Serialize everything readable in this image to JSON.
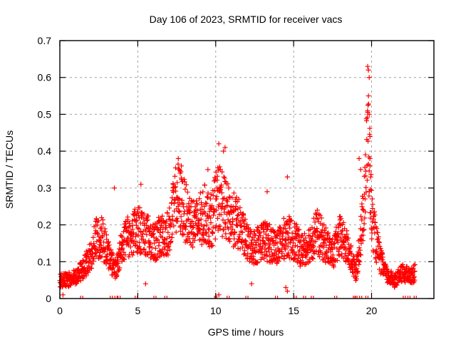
{
  "chart_data": {
    "type": "scatter",
    "title": "Day 106 of 2023, SRMTID for receiver vacs",
    "xlabel": "GPS time / hours",
    "ylabel": "SRMTID / TECUs",
    "xlim": [
      0,
      24
    ],
    "ylim": [
      0,
      0.7
    ],
    "xticks": [
      0,
      5,
      10,
      15,
      20
    ],
    "xtick_labels": [
      "0",
      "5",
      "10",
      "15",
      "20"
    ],
    "yticks": [
      0,
      0.1,
      0.2,
      0.3,
      0.4,
      0.5,
      0.6,
      0.7
    ],
    "ytick_labels": [
      "0",
      "0.1",
      "0.2",
      "0.3",
      "0.4",
      "0.5",
      "0.6",
      "0.7"
    ],
    "grid": true,
    "marker": "+",
    "color": "#ff0000",
    "series": [
      {
        "name": "SRMTID",
        "envelope": [
          [
            0.0,
            0.05
          ],
          [
            0.5,
            0.05
          ],
          [
            1.0,
            0.06
          ],
          [
            1.5,
            0.08
          ],
          [
            2.0,
            0.12
          ],
          [
            2.3,
            0.16
          ],
          [
            2.7,
            0.17
          ],
          [
            3.0,
            0.13
          ],
          [
            3.3,
            0.1
          ],
          [
            3.6,
            0.08
          ],
          [
            4.0,
            0.15
          ],
          [
            4.5,
            0.17
          ],
          [
            5.0,
            0.19
          ],
          [
            5.5,
            0.18
          ],
          [
            6.0,
            0.15
          ],
          [
            6.5,
            0.17
          ],
          [
            7.0,
            0.18
          ],
          [
            7.5,
            0.28
          ],
          [
            7.8,
            0.26
          ],
          [
            8.2,
            0.22
          ],
          [
            8.8,
            0.2
          ],
          [
            9.3,
            0.23
          ],
          [
            9.7,
            0.21
          ],
          [
            10.2,
            0.28
          ],
          [
            10.6,
            0.24
          ],
          [
            11.0,
            0.22
          ],
          [
            11.5,
            0.2
          ],
          [
            12.0,
            0.15
          ],
          [
            12.5,
            0.14
          ],
          [
            13.0,
            0.16
          ],
          [
            13.5,
            0.15
          ],
          [
            14.0,
            0.14
          ],
          [
            14.5,
            0.17
          ],
          [
            15.0,
            0.16
          ],
          [
            15.5,
            0.13
          ],
          [
            16.0,
            0.15
          ],
          [
            16.5,
            0.18
          ],
          [
            17.0,
            0.15
          ],
          [
            17.5,
            0.12
          ],
          [
            18.0,
            0.17
          ],
          [
            18.5,
            0.13
          ],
          [
            19.0,
            0.07
          ],
          [
            19.4,
            0.2
          ],
          [
            19.6,
            0.33
          ],
          [
            19.8,
            0.45
          ],
          [
            20.0,
            0.22
          ],
          [
            20.3,
            0.15
          ],
          [
            20.6,
            0.1
          ],
          [
            21.0,
            0.06
          ],
          [
            21.5,
            0.05
          ],
          [
            22.0,
            0.07
          ],
          [
            22.5,
            0.06
          ],
          [
            22.8,
            0.07
          ]
        ],
        "outliers": [
          [
            19.75,
            0.63
          ],
          [
            19.8,
            0.62
          ],
          [
            19.85,
            0.6
          ],
          [
            19.8,
            0.55
          ],
          [
            19.85,
            0.5
          ],
          [
            19.9,
            0.44
          ],
          [
            19.9,
            0.38
          ],
          [
            19.2,
            0.38
          ],
          [
            19.3,
            0.35
          ],
          [
            10.2,
            0.42
          ],
          [
            10.6,
            0.41
          ],
          [
            10.5,
            0.4
          ],
          [
            7.6,
            0.38
          ],
          [
            7.8,
            0.36
          ],
          [
            14.6,
            0.33
          ],
          [
            9.5,
            0.35
          ],
          [
            3.5,
            0.3
          ],
          [
            5.2,
            0.31
          ],
          [
            13.3,
            0.29
          ],
          [
            14.5,
            0.03
          ],
          [
            14.6,
            0.02
          ],
          [
            10.2,
            0.01
          ],
          [
            0.2,
            0.01
          ],
          [
            5.5,
            0.04
          ],
          [
            12.3,
            0.04
          ]
        ],
        "zero_points_x": [
          1.4,
          3.3,
          3.6,
          3.8,
          4.9,
          6.1,
          6.8,
          10.0,
          10.8,
          12.0,
          13.9,
          15.1,
          15.7,
          16.2,
          17.7,
          18.9,
          19.0,
          19.3,
          19.7,
          22.1,
          22.4,
          22.8
        ]
      }
    ]
  }
}
